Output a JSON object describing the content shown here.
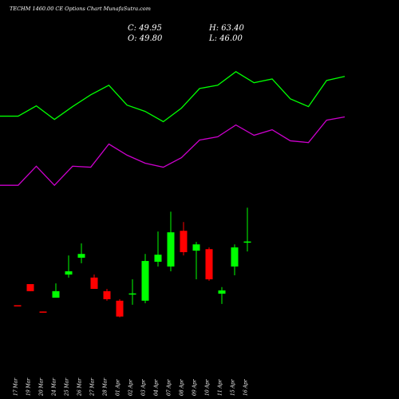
{
  "chart_data": [
    {
      "type": "candlestick",
      "title": "TECHM 1460.00 CE Options Chart MunafaSutra.com",
      "annotations": [
        "C: 49.95",
        "H: 63.40",
        "O: 49.80",
        "L: 46.00"
      ],
      "categories": [
        "17 Mar",
        "19 Mar",
        "20 Mar",
        "24 Mar",
        "25 Mar",
        "26 Mar",
        "27 Mar",
        "28 Mar",
        "01 Apr",
        "02 Apr",
        "03 Apr",
        "04 Apr",
        "07 Apr",
        "08 Apr",
        "09 Apr",
        "10 Apr",
        "11 Apr",
        "15 Apr",
        "16 Apr"
      ],
      "open": [
        24.6,
        33.0,
        22.1,
        27.6,
        36.8,
        43.5,
        35.6,
        30.2,
        26.4,
        29.2,
        26.4,
        41.9,
        40.0,
        54.2,
        46.3,
        46.9,
        29.2,
        40.0,
        49.8
      ],
      "high": [
        24.6,
        33.0,
        22.1,
        33.3,
        44.4,
        49.2,
        36.8,
        31.1,
        27.0,
        34.9,
        45.0,
        53.9,
        61.8,
        57.7,
        49.8,
        47.6,
        31.8,
        48.8,
        63.4
      ],
      "low": [
        24.4,
        30.2,
        21.9,
        27.6,
        35.6,
        41.3,
        31.1,
        26.4,
        19.8,
        24.8,
        25.4,
        40.0,
        38.1,
        44.4,
        34.9,
        34.3,
        25.1,
        36.5,
        46.0
      ],
      "close": [
        24.5,
        30.2,
        22.0,
        30.2,
        38.1,
        45.0,
        31.1,
        27.0,
        20.1,
        29.3,
        42.2,
        44.7,
        53.6,
        45.7,
        48.8,
        34.9,
        30.5,
        47.6,
        49.95
      ],
      "up_color": "#00ff00",
      "down_color": "#ff0000",
      "ylim": [
        0,
        146
      ]
    },
    {
      "type": "line",
      "categories": [
        null,
        null,
        null,
        null,
        null,
        null,
        null,
        null,
        null,
        null,
        null,
        null,
        null,
        null,
        null,
        null,
        null,
        null,
        null,
        null
      ],
      "series": [
        {
          "color": "#00ff00",
          "values": [
            99.8,
            99.8,
            103.9,
            98.5,
            103.6,
            108.3,
            112.1,
            104.2,
            101.7,
            97.6,
            103.0,
            110.8,
            112.1,
            117.5,
            113.1,
            114.6,
            106.7,
            103.6,
            114.0,
            115.6
          ]
        },
        {
          "color": "#cc00cc",
          "values": [
            72.3,
            72.3,
            79.9,
            72.3,
            79.9,
            79.5,
            88.7,
            84.3,
            81.1,
            79.5,
            83.3,
            90.3,
            91.6,
            96.3,
            92.2,
            94.4,
            90.0,
            89.3,
            98.2,
            99.5
          ]
        }
      ],
      "ylim": [
        0,
        146
      ]
    }
  ]
}
